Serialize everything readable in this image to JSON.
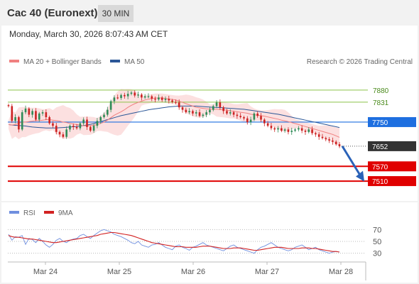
{
  "header": {
    "title": "Cac 40 (Euronext)",
    "timeframe": "30 MIN"
  },
  "datetime": "Monday, March 30, 2026 8:07:43 AM CET",
  "legend": {
    "ma20_label": "MA 20 + Bollinger Bands",
    "ma50_label": "MA 50",
    "rsi_label": "RSI",
    "rsi_ma_label": "9MA",
    "copyright": "Research © 2026 Trading Central"
  },
  "colors": {
    "ma20": "#f08080",
    "ma50": "#2b5797",
    "resistance": "#8bc34a",
    "pivot": "#1e6fe0",
    "support": "#e00000",
    "current": "#333333",
    "rsi": "#6f8fdf",
    "rsi_ma": "#d22222",
    "candle_up": "#2e8b57",
    "candle_down": "#cc2222",
    "arrow": "#2a62b8"
  },
  "chart_data": [
    {
      "type": "candlestick",
      "x_labels": [
        "Mar 24",
        "Mar 25",
        "Mar 26",
        "Mar 27",
        "Mar 28"
      ],
      "y_range": [
        7490,
        7900
      ],
      "levels": [
        {
          "label": "7880",
          "value": 7880,
          "kind": "resistance"
        },
        {
          "label": "7831",
          "value": 7831,
          "kind": "resistance"
        },
        {
          "label": "7750",
          "value": 7750,
          "kind": "pivot"
        },
        {
          "label": "7652",
          "value": 7652,
          "kind": "current"
        },
        {
          "label": "7570",
          "value": 7570,
          "kind": "support"
        },
        {
          "label": "7510",
          "value": 7510,
          "kind": "support"
        }
      ],
      "price_series": [
        7815,
        7755,
        7770,
        7720,
        7790,
        7805,
        7780,
        7795,
        7760,
        7785,
        7790,
        7770,
        7745,
        7735,
        7710,
        7700,
        7690,
        7720,
        7735,
        7730,
        7725,
        7745,
        7760,
        7730,
        7715,
        7735,
        7755,
        7770,
        7780,
        7800,
        7835,
        7850,
        7848,
        7860,
        7855,
        7865,
        7870,
        7858,
        7862,
        7850,
        7855,
        7855,
        7845,
        7842,
        7850,
        7840,
        7845,
        7838,
        7832,
        7830,
        7810,
        7800,
        7790,
        7795,
        7785,
        7790,
        7775,
        7780,
        7790,
        7800,
        7815,
        7830,
        7810,
        7795,
        7785,
        7790,
        7780,
        7775,
        7770,
        7765,
        7750,
        7760,
        7785,
        7775,
        7760,
        7745,
        7735,
        7725,
        7720,
        7725,
        7715,
        7720,
        7710,
        7715,
        7720,
        7725,
        7715,
        7710,
        7720,
        7705,
        7700,
        7690,
        7685,
        7680,
        7675,
        7670,
        7660,
        7652
      ],
      "ma20_series": [
        7740,
        7738,
        7740,
        7745,
        7750,
        7750,
        7752,
        7754,
        7756,
        7756,
        7758,
        7760,
        7760,
        7758,
        7756,
        7754,
        7750,
        7748,
        7745,
        7742,
        7740,
        7738,
        7735,
        7735,
        7735,
        7737,
        7740,
        7745,
        7750,
        7758,
        7768,
        7778,
        7785,
        7792,
        7800,
        7810,
        7818,
        7825,
        7830,
        7835,
        7840,
        7843,
        7846,
        7848,
        7848,
        7848,
        7846,
        7844,
        7842,
        7840,
        7835,
        7830,
        7825,
        7820,
        7815,
        7810,
        7808,
        7806,
        7804,
        7803,
        7802,
        7802,
        7801,
        7800,
        7798,
        7796,
        7794,
        7792,
        7790,
        7788,
        7786,
        7782,
        7780,
        7778,
        7776,
        7774,
        7771,
        7768,
        7765,
        7762,
        7758,
        7755,
        7752,
        7748,
        7744,
        7740,
        7736,
        7732,
        7728,
        7724,
        7720,
        7716,
        7712,
        7708,
        7704,
        7700,
        7694,
        7688
      ],
      "ma50_series": [
        7740,
        7738,
        7737,
        7736,
        7735,
        7734,
        7732,
        7730,
        7729,
        7728,
        7727,
        7726,
        7726,
        7726,
        7726,
        7727,
        7728,
        7729,
        7730,
        7731,
        7732,
        7734,
        7736,
        7738,
        7741,
        7744,
        7748,
        7752,
        7756,
        7760,
        7764,
        7768,
        7772,
        7776,
        7779,
        7782,
        7785,
        7788,
        7791,
        7794,
        7797,
        7800,
        7802,
        7804,
        7806,
        7808,
        7810,
        7812,
        7813,
        7814,
        7815,
        7815,
        7815,
        7815,
        7815,
        7815,
        7814,
        7813,
        7812,
        7811,
        7810,
        7810,
        7809,
        7808,
        7807,
        7806,
        7805,
        7804,
        7803,
        7802,
        7800,
        7798,
        7796,
        7794,
        7792,
        7790,
        7788,
        7786,
        7784,
        7782,
        7779,
        7776,
        7773,
        7770,
        7767,
        7764,
        7761,
        7758,
        7755,
        7752,
        7749,
        7746,
        7743,
        7740,
        7737,
        7734,
        7731,
        7728
      ],
      "projection": {
        "from": 7652,
        "to": 7520
      }
    },
    {
      "type": "line",
      "x_labels": [
        "Mar 24",
        "Mar 25",
        "Mar 26",
        "Mar 27",
        "Mar 28"
      ],
      "y_range": [
        20,
        80
      ],
      "y_ticks": [
        "70",
        "50",
        "30"
      ],
      "y_tick_values": [
        70,
        50,
        30
      ],
      "series": [
        {
          "name": "RSI",
          "values": [
            62,
            52,
            58,
            57,
            60,
            45,
            55,
            53,
            48,
            55,
            50,
            44,
            40,
            45,
            52,
            55,
            50,
            48,
            52,
            54,
            55,
            60,
            62,
            58,
            55,
            60,
            64,
            68,
            70,
            68,
            66,
            62,
            60,
            58,
            55,
            52,
            48,
            46,
            50,
            44,
            42,
            40,
            44,
            45,
            48,
            44,
            40,
            38,
            36,
            42,
            44,
            40,
            38,
            35,
            40,
            42,
            45,
            48,
            44,
            42,
            40,
            38,
            36,
            34,
            38,
            42,
            44,
            40,
            38,
            36,
            34,
            32,
            30,
            36,
            40,
            42,
            45,
            48,
            44,
            40,
            38,
            36,
            34,
            36,
            40,
            42,
            44,
            40,
            36,
            38,
            40,
            36,
            34,
            32,
            30,
            32,
            33,
            32
          ]
        },
        {
          "name": "9MA",
          "values": [
            60,
            58,
            57,
            57,
            56,
            55,
            54,
            54,
            53,
            52,
            51,
            50,
            49,
            48,
            48,
            49,
            50,
            51,
            52,
            53,
            54,
            55,
            56,
            57,
            58,
            59,
            60,
            62,
            63,
            64,
            65,
            65,
            64,
            63,
            62,
            61,
            60,
            58,
            56,
            54,
            52,
            50,
            48,
            47,
            46,
            45,
            44,
            43,
            42,
            41,
            41,
            41,
            40,
            40,
            40,
            40,
            41,
            42,
            42,
            42,
            41,
            40,
            39,
            38,
            38,
            38,
            39,
            39,
            39,
            38,
            37,
            36,
            35,
            35,
            36,
            37,
            38,
            39,
            40,
            40,
            40,
            39,
            38,
            38,
            38,
            38,
            39,
            39,
            39,
            38,
            38,
            37,
            36,
            35,
            34,
            33,
            33,
            32
          ]
        }
      ]
    }
  ]
}
